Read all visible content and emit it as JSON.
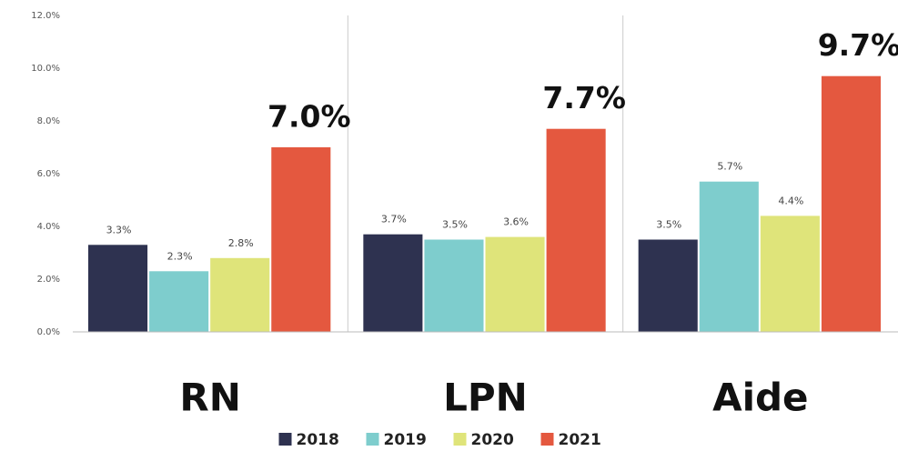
{
  "chart_data": {
    "type": "bar",
    "categories": [
      "RN",
      "LPN",
      "Aide"
    ],
    "series": [
      {
        "name": "2018",
        "color": "#2e3250",
        "values": [
          3.3,
          3.7,
          3.5
        ],
        "value_labels": [
          "3.3%",
          "3.7%",
          "3.5%"
        ]
      },
      {
        "name": "2019",
        "color": "#7ecdcd",
        "values": [
          2.3,
          3.5,
          5.7
        ],
        "value_labels": [
          "2.3%",
          "3.5%",
          "5.7%"
        ]
      },
      {
        "name": "2020",
        "color": "#dfe47a",
        "values": [
          2.8,
          3.6,
          4.4
        ],
        "value_labels": [
          "2.8%",
          "3.6%",
          "4.4%"
        ]
      },
      {
        "name": "2021",
        "color": "#e4583f",
        "values": [
          7.0,
          7.7,
          9.7
        ],
        "value_labels": [
          "7.0%",
          "7.7%",
          "9.7%"
        ]
      }
    ],
    "ylim": [
      0,
      12
    ],
    "yticks": [
      {
        "value": 0,
        "label": "0.0%"
      },
      {
        "value": 2,
        "label": "2.0%"
      },
      {
        "value": 4,
        "label": "4.0%"
      },
      {
        "value": 6,
        "label": "6.0%"
      },
      {
        "value": 8,
        "label": "8.0%"
      },
      {
        "value": 10,
        "label": "10.0%"
      },
      {
        "value": 12,
        "label": "12.0%"
      }
    ],
    "grid": false,
    "legend": "bottom"
  }
}
